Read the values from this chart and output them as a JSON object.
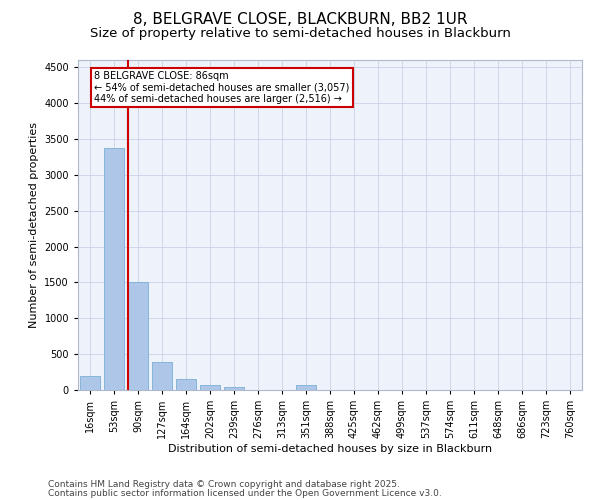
{
  "title1": "8, BELGRAVE CLOSE, BLACKBURN, BB2 1UR",
  "title2": "Size of property relative to semi-detached houses in Blackburn",
  "xlabel": "Distribution of semi-detached houses by size in Blackburn",
  "ylabel": "Number of semi-detached properties",
  "categories": [
    "16sqm",
    "53sqm",
    "90sqm",
    "127sqm",
    "164sqm",
    "202sqm",
    "239sqm",
    "276sqm",
    "313sqm",
    "351sqm",
    "388sqm",
    "425sqm",
    "462sqm",
    "499sqm",
    "537sqm",
    "574sqm",
    "611sqm",
    "648sqm",
    "686sqm",
    "723sqm",
    "760sqm"
  ],
  "values": [
    200,
    3370,
    1510,
    385,
    155,
    70,
    45,
    0,
    0,
    65,
    0,
    0,
    0,
    0,
    0,
    0,
    0,
    0,
    0,
    0,
    0
  ],
  "bar_color": "#aec6e8",
  "bar_edge_color": "#7aafd4",
  "vline_color": "#cc0000",
  "annotation_title": "8 BELGRAVE CLOSE: 86sqm",
  "annotation_line1": "← 54% of semi-detached houses are smaller (3,057)",
  "annotation_line2": "44% of semi-detached houses are larger (2,516) →",
  "annotation_box_color": "#cc0000",
  "ylim": [
    0,
    4600
  ],
  "yticks": [
    0,
    500,
    1000,
    1500,
    2000,
    2500,
    3000,
    3500,
    4000,
    4500
  ],
  "footnote1": "Contains HM Land Registry data © Crown copyright and database right 2025.",
  "footnote2": "Contains public sector information licensed under the Open Government Licence v3.0.",
  "bg_color": "#eef2fa",
  "grid_color": "#c8d4e8",
  "title1_fontsize": 11,
  "title2_fontsize": 9.5,
  "axis_label_fontsize": 8,
  "tick_fontsize": 7,
  "annotation_fontsize": 7,
  "footnote_fontsize": 6.5
}
